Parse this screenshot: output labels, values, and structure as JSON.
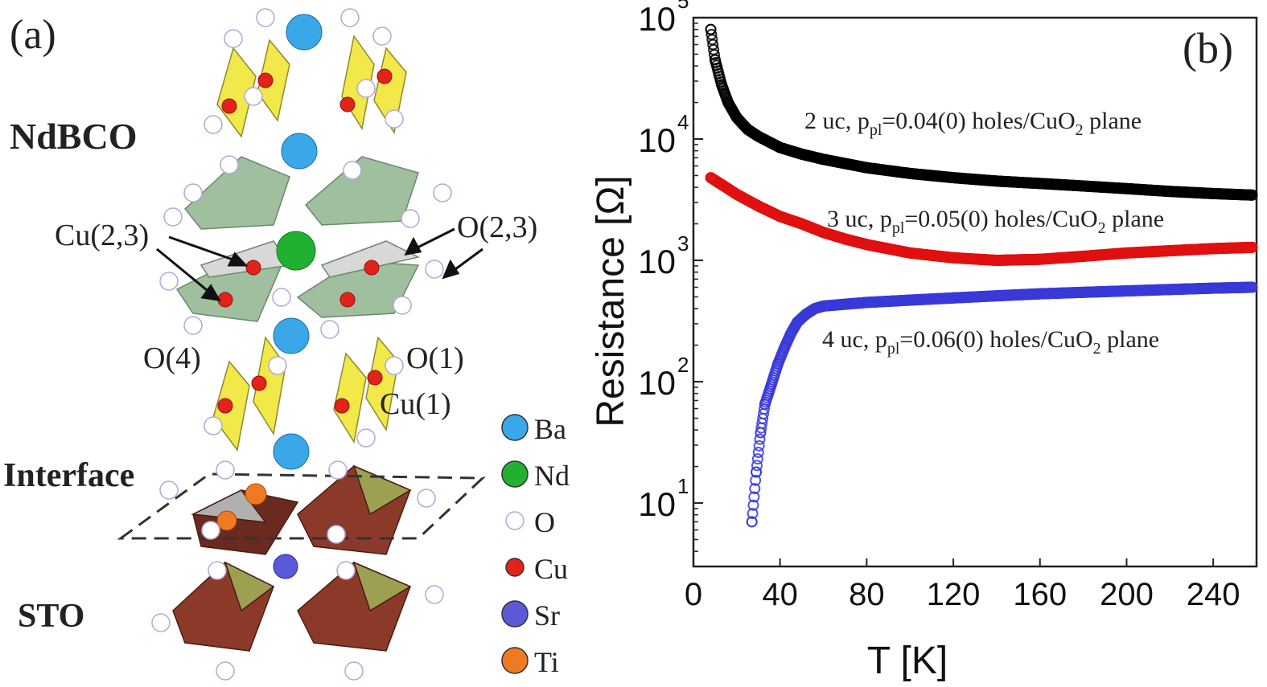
{
  "panel_a": {
    "label": "(a)",
    "layers": {
      "top": "NdBCO",
      "interface": "Interface",
      "bottom": "STO"
    },
    "site_labels": {
      "cu23": "Cu(2,3)",
      "o23": "O(2,3)",
      "o4": "O(4)",
      "o1": "O(1)",
      "cu1": "Cu(1)"
    },
    "legend": [
      {
        "label": "Ba",
        "color": "#3aa7e8"
      },
      {
        "label": "Nd",
        "color": "#22b030"
      },
      {
        "label": "O",
        "color": "#ffffff"
      },
      {
        "label": "Cu",
        "color": "#e2231a"
      },
      {
        "label": "Sr",
        "color": "#5a5ad8"
      },
      {
        "label": "Ti",
        "color": "#f07a22"
      }
    ],
    "colors": {
      "cuo_chain": "#f2e84a",
      "pyramid": "#9fbf9f",
      "sto_octa": "#8b3a2a",
      "sto_face": "#9ca050"
    }
  },
  "chart_data": {
    "type": "scatter",
    "panel_label": "(b)",
    "xlabel": "T [K]",
    "ylabel": "Resistance [Ω]",
    "xlim": [
      0,
      260
    ],
    "ylim": [
      3,
      100000
    ],
    "yscale": "log",
    "xticks": [
      "0",
      "40",
      "80",
      "120",
      "160",
      "200",
      "240"
    ],
    "yticks": [
      {
        "base": "10",
        "exp": "1"
      },
      {
        "base": "10",
        "exp": "2"
      },
      {
        "base": "10",
        "exp": "3"
      },
      {
        "base": "10",
        "exp": "4"
      },
      {
        "base": "10",
        "exp": "5"
      }
    ],
    "series": [
      {
        "color": "#000000",
        "annotation": {
          "pre": "2 uc, p",
          "sub": "pl",
          "mid": "=0.04(0) holes/CuO",
          "sub2": "2",
          "post": " plane"
        },
        "points": [
          [
            8,
            80000
          ],
          [
            10,
            45000
          ],
          [
            13,
            28000
          ],
          [
            16,
            20000
          ],
          [
            20,
            15000
          ],
          [
            25,
            12000
          ],
          [
            30,
            10500
          ],
          [
            40,
            8500
          ],
          [
            50,
            7500
          ],
          [
            60,
            6800
          ],
          [
            80,
            5800
          ],
          [
            100,
            5200
          ],
          [
            120,
            4800
          ],
          [
            140,
            4500
          ],
          [
            160,
            4300
          ],
          [
            180,
            4100
          ],
          [
            200,
            3900
          ],
          [
            220,
            3700
          ],
          [
            240,
            3550
          ],
          [
            258,
            3450
          ]
        ]
      },
      {
        "color": "#e01010",
        "annotation": {
          "pre": "3 uc, p",
          "sub": "pl",
          "mid": "=0.05(0) holes/CuO",
          "sub2": "2",
          "post": " plane"
        },
        "points": [
          [
            8,
            4800
          ],
          [
            15,
            4000
          ],
          [
            20,
            3500
          ],
          [
            30,
            2800
          ],
          [
            40,
            2300
          ],
          [
            50,
            2000
          ],
          [
            60,
            1700
          ],
          [
            70,
            1500
          ],
          [
            80,
            1350
          ],
          [
            100,
            1150
          ],
          [
            120,
            1050
          ],
          [
            140,
            1000
          ],
          [
            160,
            1020
          ],
          [
            180,
            1080
          ],
          [
            200,
            1150
          ],
          [
            220,
            1200
          ],
          [
            240,
            1250
          ],
          [
            258,
            1280
          ]
        ]
      },
      {
        "color": "#3a3ad8",
        "annotation": {
          "pre": "4 uc, p",
          "sub": "pl",
          "mid": "=0.06(0) holes/CuO",
          "sub2": "2",
          "post": " plane"
        },
        "points": [
          [
            27,
            7
          ],
          [
            29,
            18
          ],
          [
            31,
            38
          ],
          [
            33,
            65
          ],
          [
            36,
            95
          ],
          [
            39,
            140
          ],
          [
            42,
            190
          ],
          [
            45,
            250
          ],
          [
            48,
            310
          ],
          [
            52,
            360
          ],
          [
            56,
            400
          ],
          [
            60,
            420
          ],
          [
            80,
            450
          ],
          [
            100,
            470
          ],
          [
            120,
            490
          ],
          [
            140,
            510
          ],
          [
            160,
            530
          ],
          [
            180,
            545
          ],
          [
            200,
            560
          ],
          [
            220,
            575
          ],
          [
            240,
            590
          ],
          [
            258,
            600
          ]
        ]
      }
    ]
  }
}
